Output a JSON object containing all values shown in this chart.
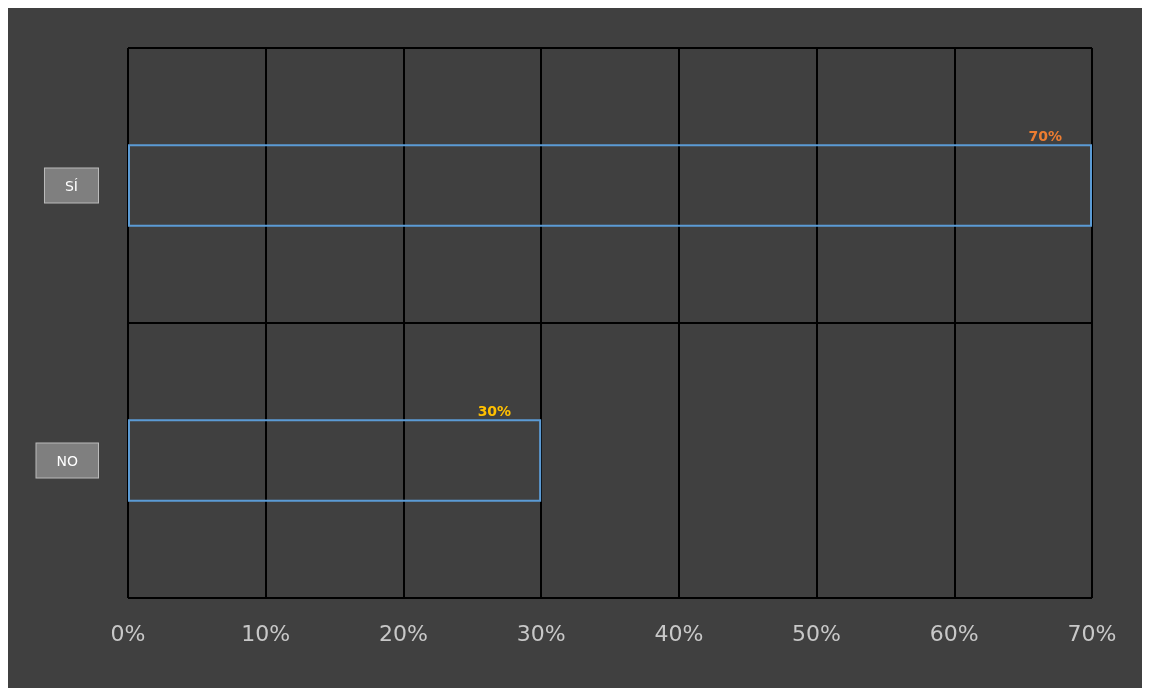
{
  "chart_data": {
    "type": "bar",
    "orientation": "horizontal",
    "categories": [
      "SÍ",
      "NO"
    ],
    "values": [
      70,
      30
    ],
    "color": "#5b9bd5",
    "value_labels": [
      "70%",
      "30%"
    ],
    "xlim": [
      0,
      70
    ],
    "xticks": [
      {
        "value": 0,
        "label": "0%"
      },
      {
        "value": 10,
        "label": "10%"
      },
      {
        "value": 20,
        "label": "20%"
      },
      {
        "value": 30,
        "label": "30%"
      },
      {
        "value": 40,
        "label": "40%"
      },
      {
        "value": 50,
        "label": "50%"
      },
      {
        "value": 60,
        "label": "60%"
      },
      {
        "value": 70,
        "label": "70%"
      }
    ],
    "grid": "x"
  }
}
